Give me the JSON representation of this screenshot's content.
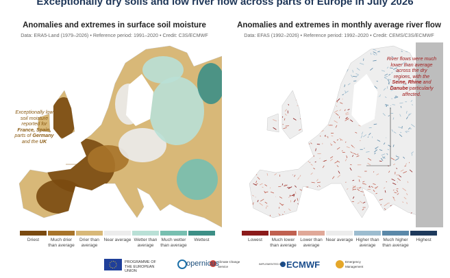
{
  "header": {
    "title": "Exceptionally dry soils and low river flow across parts of Europe in July 2026"
  },
  "panels": [
    {
      "title": "Anomalies and extremes in surface soil moisture",
      "subtitle": "Data: ERA5-Land (1979–2026) • Reference period: 1991–2020 • Credit: C3S/ECMWF",
      "annotation": [
        [
          {
            "text": "Exceptionally low"
          }
        ],
        [
          {
            "text": "soil moisture"
          }
        ],
        [
          {
            "text": "reported for"
          }
        ],
        [
          {
            "text": "France, Spain,",
            "bold": true
          }
        ],
        [
          {
            "text": "parts of "
          },
          {
            "text": "Germany",
            "bold": true
          }
        ],
        [
          {
            "text": "and the "
          },
          {
            "text": "UK",
            "bold": true
          }
        ]
      ],
      "annotation_color": "#8a5a12",
      "legend": [
        {
          "label": "Driest",
          "color": "#7a4a10"
        },
        {
          "label": "Much drier than average",
          "color": "#a8742a"
        },
        {
          "label": "Drier than average",
          "color": "#d8b878"
        },
        {
          "label": "Near average",
          "color": "#ececec"
        },
        {
          "label": "Wetter than average",
          "color": "#b9e0d6"
        },
        {
          "label": "Much wetter than average",
          "color": "#77bfb0"
        },
        {
          "label": "Wettest",
          "color": "#3d8f86"
        }
      ]
    },
    {
      "title": "Anomalies and extremes in monthly average river flow",
      "subtitle": "Data: EFAS (1992–2026) • Reference period: 1992–2020 • Credit: CEMS/C3S/ECMWF",
      "annotation": [
        [
          {
            "text": "River flows were much"
          }
        ],
        [
          {
            "text": "lower than average"
          }
        ],
        [
          {
            "text": "across the dry"
          }
        ],
        [
          {
            "text": "regions, with the"
          }
        ],
        [
          {
            "text": "Seine, Rhine",
            "bold": true
          },
          {
            "text": " and"
          }
        ],
        [
          {
            "text": "Danube",
            "bold": true
          },
          {
            "text": " particularly"
          }
        ],
        [
          {
            "text": "affected."
          }
        ]
      ],
      "annotation_color": "#a11d1d",
      "legend": [
        {
          "label": "Lowest",
          "color": "#8b1a1a"
        },
        {
          "label": "Much lower than average",
          "color": "#c06050"
        },
        {
          "label": "Lower than average",
          "color": "#e0a898"
        },
        {
          "label": "Near average",
          "color": "#ececec"
        },
        {
          "label": "Higher than average",
          "color": "#9cbccf"
        },
        {
          "label": "Much higher than average",
          "color": "#5a88a8"
        },
        {
          "label": "Highest",
          "color": "#1e3a5c"
        }
      ]
    }
  ],
  "footer": {
    "eu": "PROGRAMME OF THE EUROPEAN UNION",
    "copernicus": "opernicus",
    "c3s": "Climate Change Service",
    "implemented": "IMPLEMENTED BY",
    "ecmwf": "ECMWF",
    "cems": "Emergency Management"
  }
}
